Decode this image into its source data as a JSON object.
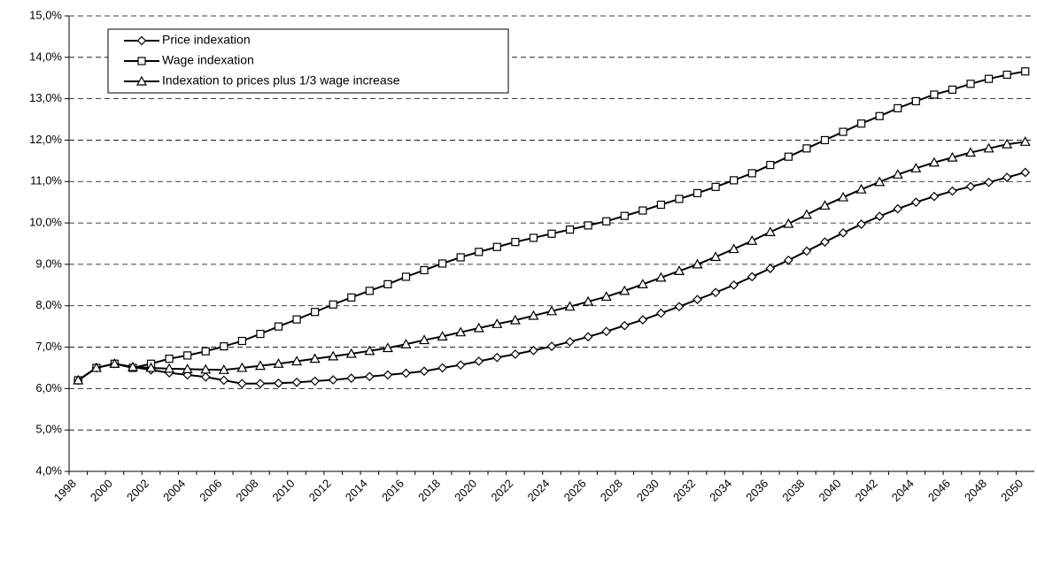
{
  "chart_data": {
    "type": "line",
    "categories": [
      "1998",
      null,
      "2000",
      null,
      "2002",
      null,
      "2004",
      null,
      "2006",
      null,
      "2008",
      null,
      "2010",
      null,
      "2012",
      null,
      "2014",
      null,
      "2016",
      null,
      "2018",
      null,
      "2020",
      null,
      "2022",
      null,
      "2024",
      null,
      "2026",
      null,
      "2028",
      null,
      "2030",
      null,
      "2032",
      null,
      "2034",
      null,
      "2036",
      null,
      "2038",
      null,
      "2040",
      null,
      "2042",
      null,
      "2044",
      null,
      "2046",
      null,
      "2048",
      null,
      "2050"
    ],
    "series": [
      {
        "name": "Price indexation",
        "color": "#000000",
        "marker": "diamond",
        "values": [
          6.2,
          6.5,
          6.6,
          6.52,
          6.45,
          6.38,
          6.33,
          6.28,
          6.2,
          6.12,
          6.12,
          6.13,
          6.15,
          6.18,
          6.21,
          6.25,
          6.29,
          6.33,
          6.37,
          6.42,
          6.5,
          6.57,
          6.66,
          6.75,
          6.83,
          6.92,
          7.02,
          7.13,
          7.25,
          7.38,
          7.52,
          7.66,
          7.82,
          7.98,
          8.15,
          8.32,
          8.5,
          8.7,
          8.9,
          9.1,
          9.32,
          9.54,
          9.76,
          9.97,
          10.16,
          10.34,
          10.5,
          10.64,
          10.77,
          10.88,
          10.98,
          11.1,
          11.22
        ]
      },
      {
        "name": "Wage indexation",
        "color": "#000000",
        "marker": "square",
        "values": [
          6.2,
          6.5,
          6.6,
          6.5,
          6.6,
          6.72,
          6.8,
          6.9,
          7.02,
          7.15,
          7.32,
          7.5,
          7.67,
          7.85,
          8.03,
          8.2,
          8.36,
          8.52,
          8.7,
          8.86,
          9.02,
          9.17,
          9.3,
          9.42,
          9.54,
          9.64,
          9.74,
          9.84,
          9.94,
          10.04,
          10.17,
          10.3,
          10.44,
          10.58,
          10.72,
          10.87,
          11.03,
          11.2,
          11.4,
          11.6,
          11.8,
          12.0,
          12.2,
          12.4,
          12.58,
          12.77,
          12.94,
          13.1,
          13.22,
          13.36,
          13.48,
          13.58,
          13.66
        ]
      },
      {
        "name": "Indexation to prices plus 1/3 wage increase",
        "color": "#000000",
        "marker": "triangle",
        "values": [
          6.2,
          6.5,
          6.6,
          6.52,
          6.5,
          6.48,
          6.47,
          6.46,
          6.45,
          6.5,
          6.55,
          6.6,
          6.66,
          6.72,
          6.78,
          6.84,
          6.91,
          6.98,
          7.07,
          7.17,
          7.26,
          7.36,
          7.46,
          7.56,
          7.65,
          7.76,
          7.87,
          7.98,
          8.1,
          8.22,
          8.36,
          8.52,
          8.68,
          8.84,
          9.0,
          9.18,
          9.37,
          9.57,
          9.78,
          9.98,
          10.2,
          10.42,
          10.62,
          10.81,
          10.99,
          11.17,
          11.32,
          11.46,
          11.58,
          11.7,
          11.8,
          11.9,
          11.96
        ]
      }
    ],
    "ylim": [
      4,
      15
    ],
    "yticks": [
      {
        "value": 4,
        "label": "4,0%"
      },
      {
        "value": 5,
        "label": "5,0%"
      },
      {
        "value": 6,
        "label": "6,0%"
      },
      {
        "value": 7,
        "label": "7,0%"
      },
      {
        "value": 8,
        "label": "8,0%"
      },
      {
        "value": 9,
        "label": "9,0%"
      },
      {
        "value": 10,
        "label": "10,0%"
      },
      {
        "value": 11,
        "label": "11,0%"
      },
      {
        "value": 12,
        "label": "12,0%"
      },
      {
        "value": 13,
        "label": "13,0%"
      },
      {
        "value": 14,
        "label": "14,0%"
      },
      {
        "value": 15,
        "label": "15,0%"
      }
    ],
    "grid": true,
    "legend": "top-left"
  }
}
